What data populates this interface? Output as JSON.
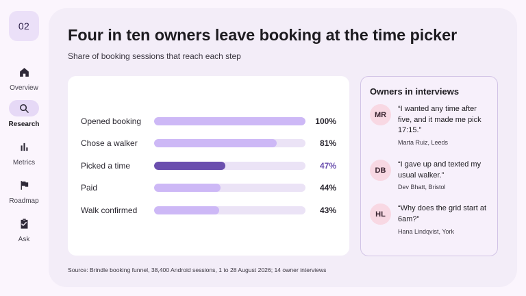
{
  "slide_number": "02",
  "nav": [
    {
      "label": "Overview",
      "icon": "home-icon",
      "active": false
    },
    {
      "label": "Research",
      "icon": "search-icon",
      "active": true
    },
    {
      "label": "Metrics",
      "icon": "bar-chart-icon",
      "active": false
    },
    {
      "label": "Roadmap",
      "icon": "flag-icon",
      "active": false
    },
    {
      "label": "Ask",
      "icon": "clipboard-check-icon",
      "active": false
    }
  ],
  "title": "Four in ten owners leave booking at the time picker",
  "subtitle": "Share of booking sessions that reach each step",
  "chart_data": {
    "type": "bar",
    "categories": [
      "Opened booking",
      "Chose a walker",
      "Picked a time",
      "Paid",
      "Walk confirmed"
    ],
    "values": [
      100,
      81,
      47,
      44,
      43
    ],
    "value_labels": [
      "100%",
      "81%",
      "47%",
      "44%",
      "43%"
    ],
    "highlight_index": 2,
    "xlim": [
      0,
      100
    ],
    "colors": {
      "bar": "#cdb8f6",
      "highlight": "#6b4fae",
      "track": "#ebe3f6"
    }
  },
  "quotes": {
    "title": "Owners in interviews",
    "items": [
      {
        "initials": "MR",
        "text": "“I wanted any time after five, and it made me pick 17:15.”",
        "author": "Marta Ruiz, Leeds"
      },
      {
        "initials": "DB",
        "text": "“I gave up and texted my usual walker.”",
        "author": "Dev Bhatt, Bristol"
      },
      {
        "initials": "HL",
        "text": "“Why does the grid start at 6am?”",
        "author": "Hana Lindqvist, York"
      }
    ]
  },
  "source": "Source: Brindle booking funnel, 38,400 Android sessions, 1 to 28 August 2026; 14 owner interviews"
}
